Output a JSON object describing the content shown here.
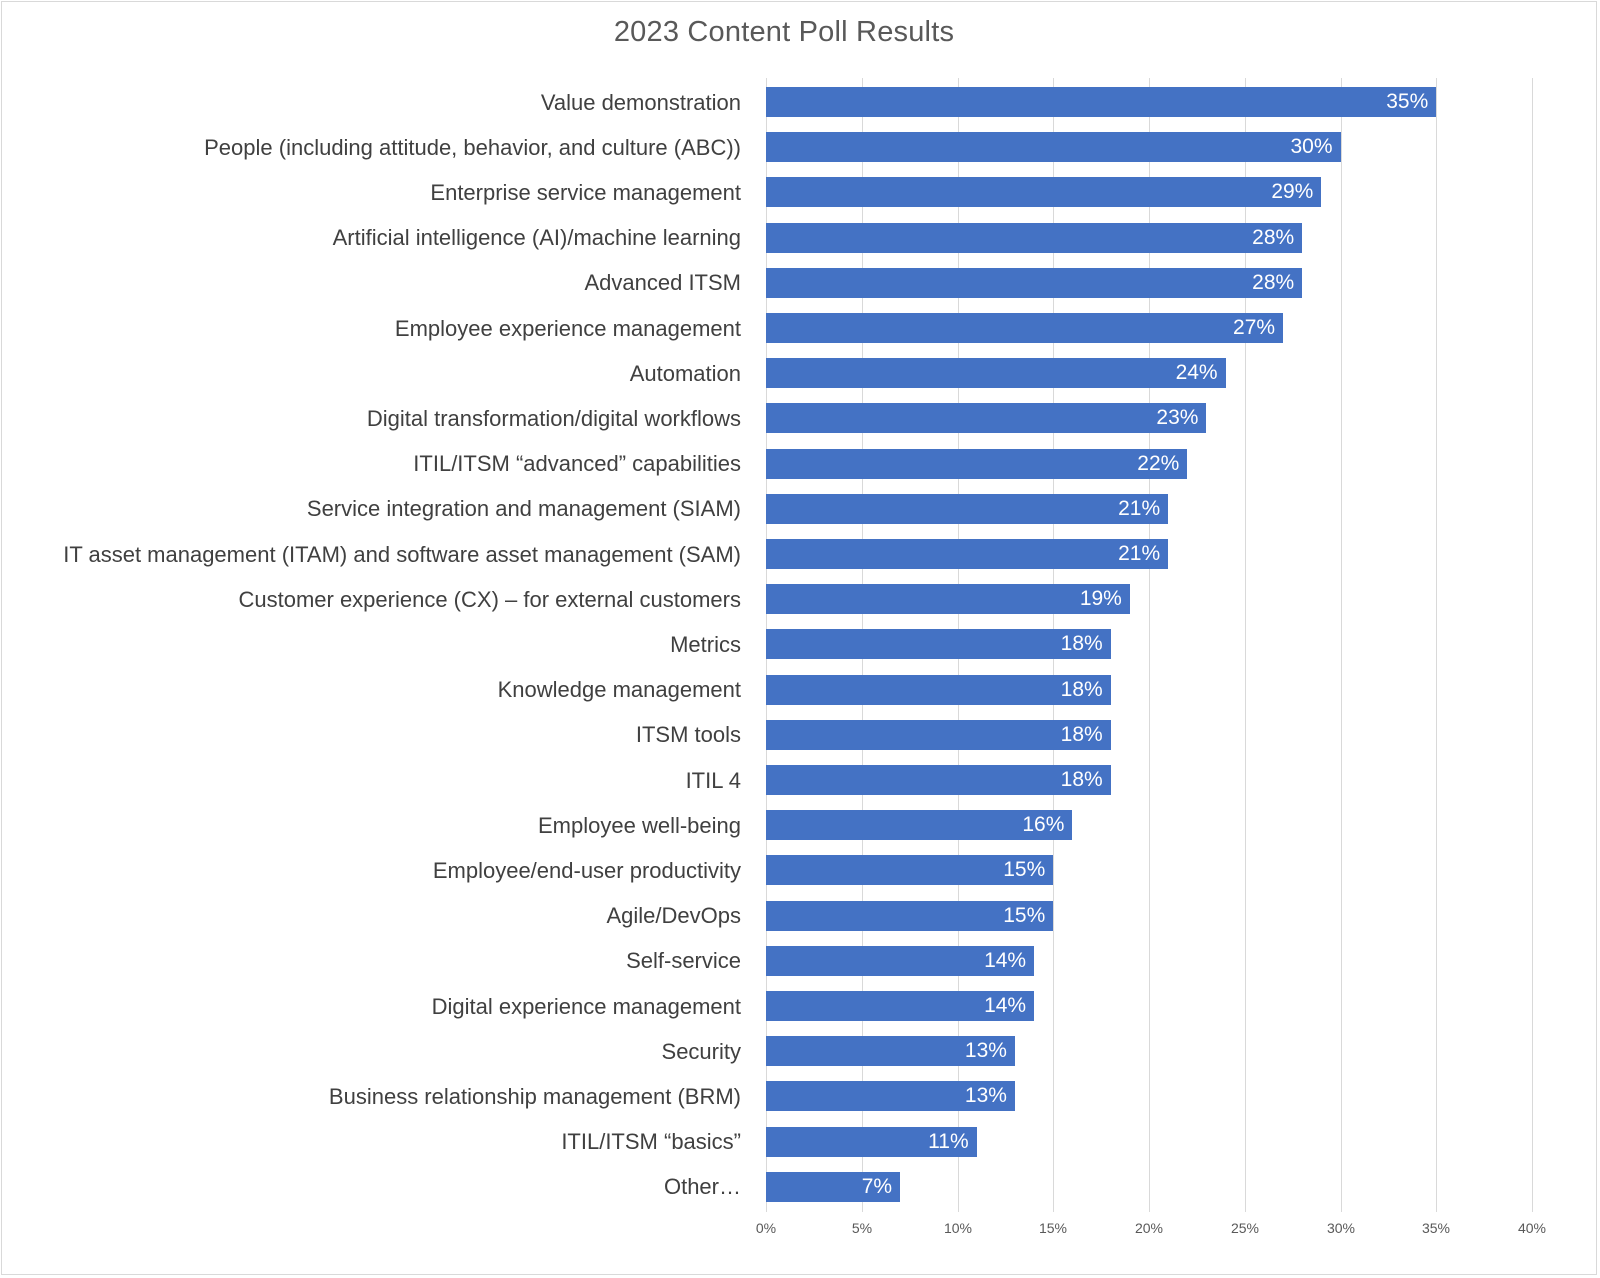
{
  "chart_data": {
    "type": "bar",
    "orientation": "horizontal",
    "title": "2023 Content Poll Results",
    "xlabel": "",
    "ylabel": "",
    "xlim": [
      0,
      40
    ],
    "x_ticks": [
      "0%",
      "5%",
      "10%",
      "15%",
      "20%",
      "25%",
      "30%",
      "35%",
      "40%"
    ],
    "grid": true,
    "legend": null,
    "bar_color": "#4472c4",
    "data_labels": true,
    "categories": [
      "Value demonstration",
      "People (including attitude, behavior, and culture (ABC))",
      "Enterprise service management",
      "Artificial intelligence (AI)/machine learning",
      "Advanced ITSM",
      "Employee experience management",
      "Automation",
      "Digital transformation/digital workflows",
      "ITIL/ITSM “advanced” capabilities",
      "Service integration and management (SIAM)",
      "IT asset management (ITAM) and software asset management (SAM)",
      "Customer experience (CX) – for external customers",
      "Metrics",
      "Knowledge management",
      "ITSM tools",
      "ITIL 4",
      "Employee well-being",
      "Employee/end-user productivity",
      "Agile/DevOps",
      "Self-service",
      "Digital experience management",
      "Security",
      "Business relationship management (BRM)",
      "ITIL/ITSM “basics”",
      "Other…"
    ],
    "values": [
      35,
      30,
      29,
      28,
      28,
      27,
      24,
      23,
      22,
      21,
      21,
      19,
      18,
      18,
      18,
      18,
      16,
      15,
      15,
      14,
      14,
      13,
      13,
      11,
      7
    ],
    "value_labels": [
      "35%",
      "30%",
      "29%",
      "28%",
      "28%",
      "27%",
      "24%",
      "23%",
      "22%",
      "21%",
      "21%",
      "19%",
      "18%",
      "18%",
      "18%",
      "18%",
      "16%",
      "15%",
      "15%",
      "14%",
      "14%",
      "13%",
      "13%",
      "11%",
      "7%"
    ]
  }
}
